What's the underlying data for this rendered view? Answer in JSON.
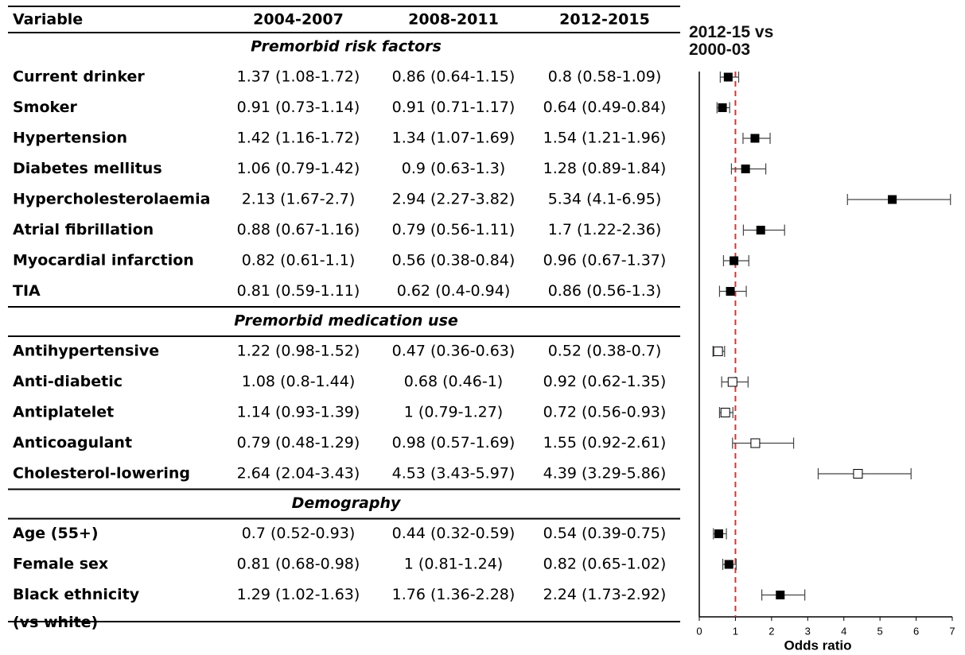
{
  "table": {
    "header": [
      "Variable",
      "2004-2007",
      "2008-2011",
      "2012-2015"
    ],
    "sections": [
      {
        "title": "Premorbid risk factors",
        "rows": [
          [
            "Current drinker",
            "1.37 (1.08-1.72)",
            "0.86 (0.64-1.15)",
            "0.8 (0.58-1.09)"
          ],
          [
            "Smoker",
            "0.91 (0.73-1.14)",
            "0.91 (0.71-1.17)",
            "0.64 (0.49-0.84)"
          ],
          [
            "Hypertension",
            "1.42 (1.16-1.72)",
            "1.34 (1.07-1.69)",
            "1.54 (1.21-1.96)"
          ],
          [
            "Diabetes mellitus",
            "1.06 (0.79-1.42)",
            "0.9 (0.63-1.3)",
            "1.28 (0.89-1.84)"
          ],
          [
            "Hypercholesterolaemia",
            "2.13 (1.67-2.7)",
            "2.94 (2.27-3.82)",
            "5.34 (4.1-6.95)"
          ],
          [
            "Atrial fibrillation",
            "0.88 (0.67-1.16)",
            "0.79 (0.56-1.11)",
            "1.7 (1.22-2.36)"
          ],
          [
            "Myocardial infarction",
            "0.82 (0.61-1.1)",
            "0.56 (0.38-0.84)",
            "0.96 (0.67-1.37)"
          ],
          [
            "TIA",
            "0.81 (0.59-1.11)",
            "0.62 (0.4-0.94)",
            "0.86 (0.56-1.3)"
          ]
        ]
      },
      {
        "title": "Premorbid medication use",
        "rows": [
          [
            "Antihypertensive",
            "1.22 (0.98-1.52)",
            "0.47 (0.36-0.63)",
            "0.52 (0.38-0.7)"
          ],
          [
            "Anti-diabetic",
            "1.08 (0.8-1.44)",
            "0.68 (0.46-1)",
            "0.92 (0.62-1.35)"
          ],
          [
            "Antiplatelet",
            "1.14 (0.93-1.39)",
            "1 (0.79-1.27)",
            "0.72 (0.56-0.93)"
          ],
          [
            "Anticoagulant",
            "0.79 (0.48-1.29)",
            "0.98 (0.57-1.69)",
            "1.55 (0.92-2.61)"
          ],
          [
            "Cholesterol-lowering",
            "2.64 (2.04-3.43)",
            "4.53 (3.43-5.97)",
            "4.39 (3.29-5.86)"
          ]
        ]
      },
      {
        "title": "Demography",
        "rows": [
          [
            "Age (55+)",
            "0.7 (0.52-0.93)",
            "0.44 (0.32-0.59)",
            "0.54 (0.39-0.75)"
          ],
          [
            "Female sex",
            "0.81 (0.68-0.98)",
            "1 (0.81-1.24)",
            "0.82 (0.65-1.02)"
          ],
          [
            [
              "Black ethnicity",
              "(vs white)"
            ],
            "1.29 (1.02-1.63)",
            "1.76 (1.36-2.28)",
            "2.24 (1.73-2.92)"
          ]
        ]
      }
    ]
  },
  "chart_data": {
    "type": "forest",
    "title": "2012-15 vs 2000-03",
    "xlabel": "Odds ratio",
    "xlim": [
      0,
      7
    ],
    "xticks": [
      0,
      1,
      2,
      3,
      4,
      5,
      6,
      7
    ],
    "reference_line": 1,
    "reference_color": "#e03030",
    "color": "#000000",
    "values": [
      0.8,
      0.64,
      1.54,
      1.28,
      5.34,
      1.7,
      0.96,
      0.86,
      0.52,
      0.92,
      0.72,
      1.55,
      4.39,
      0.54,
      0.82,
      2.24
    ],
    "lower": [
      0.58,
      0.49,
      1.21,
      0.89,
      4.1,
      1.22,
      0.67,
      0.56,
      0.38,
      0.62,
      0.56,
      0.92,
      3.29,
      0.39,
      0.65,
      1.73
    ],
    "upper": [
      1.09,
      0.84,
      1.96,
      1.84,
      6.95,
      2.36,
      1.37,
      1.3,
      0.7,
      1.35,
      0.93,
      2.61,
      5.86,
      0.75,
      1.02,
      2.92
    ],
    "filled": [
      true,
      true,
      true,
      true,
      true,
      true,
      true,
      true,
      false,
      false,
      false,
      false,
      false,
      true,
      true,
      true
    ]
  }
}
